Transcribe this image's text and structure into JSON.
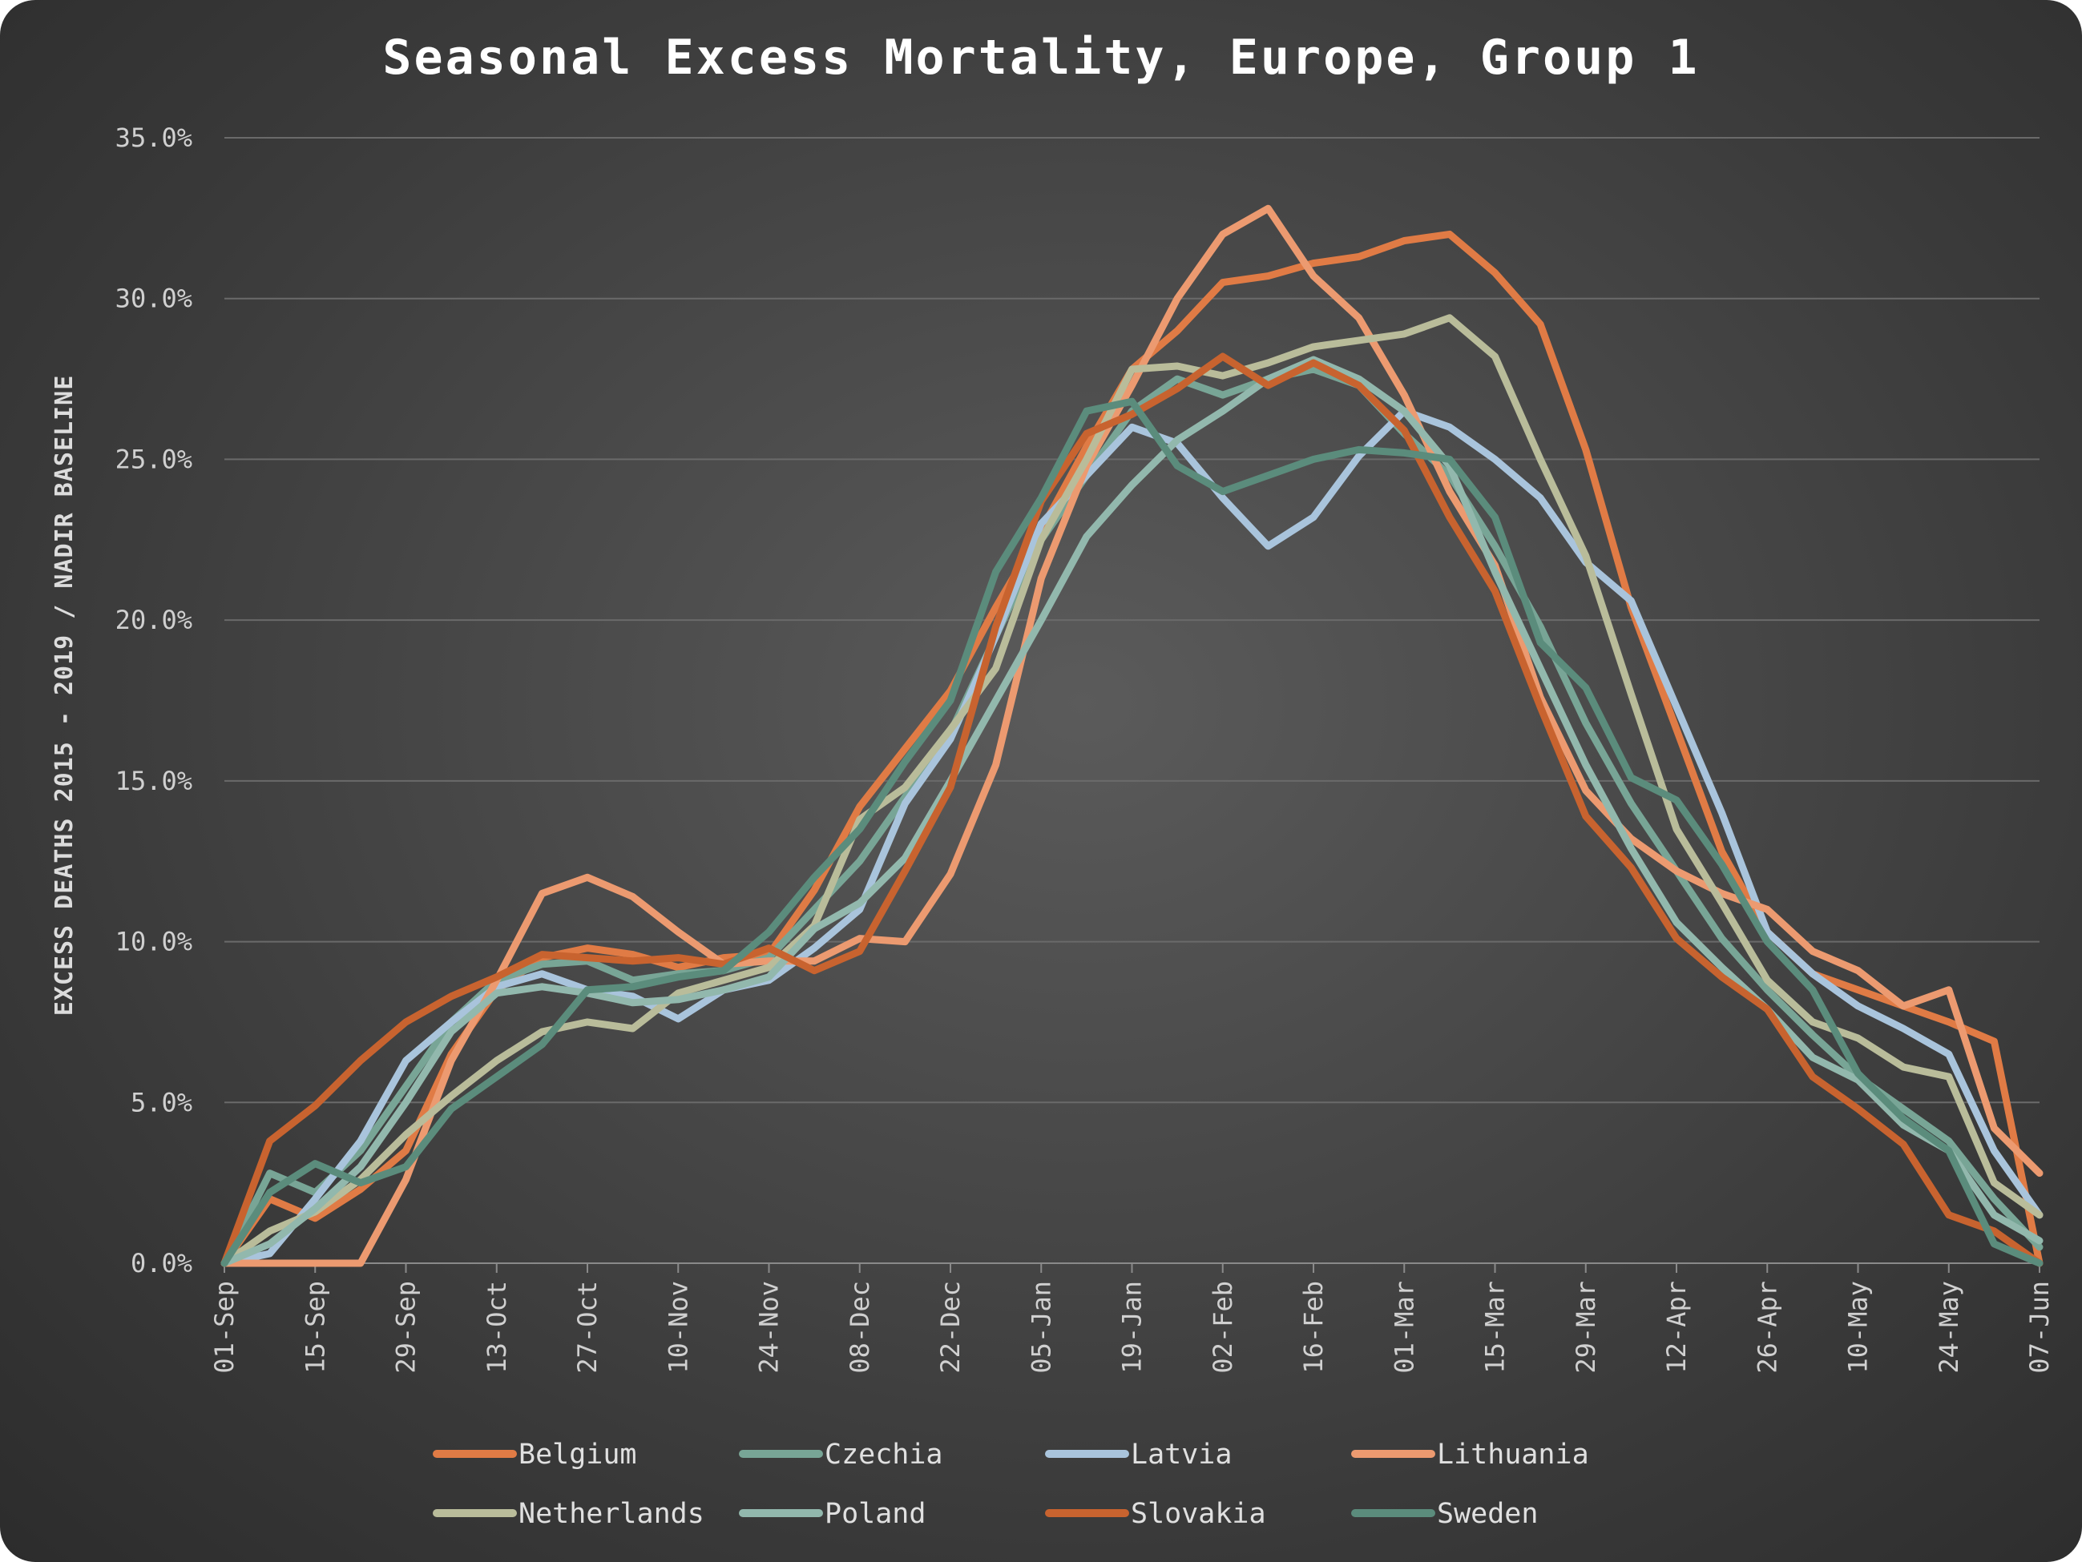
{
  "chart_data": {
    "type": "line",
    "title": "Seasonal Excess Mortality, Europe, Group 1",
    "ylabel": "EXCESS DEATHS 2015 - 2019 / NADIR BASELINE",
    "xlabel": "",
    "ylim": [
      0,
      35
    ],
    "y_ticks": [
      "0.0%",
      "5.0%",
      "10.0%",
      "15.0%",
      "20.0%",
      "25.0%",
      "30.0%",
      "35.0%"
    ],
    "y_tick_values": [
      0,
      5,
      10,
      15,
      20,
      25,
      30,
      35
    ],
    "x_tick_labels": [
      "01-Sep",
      "15-Sep",
      "29-Sep",
      "13-Oct",
      "27-Oct",
      "10-Nov",
      "24-Nov",
      "08-Dec",
      "22-Dec",
      "05-Jan",
      "19-Jan",
      "02-Feb",
      "16-Feb",
      "01-Mar",
      "15-Mar",
      "29-Mar",
      "12-Apr",
      "26-Apr",
      "10-May",
      "24-May",
      "07-Jun"
    ],
    "weeks": 41,
    "grid": "horizontal",
    "legend_position": "bottom",
    "series": [
      {
        "name": "Belgium",
        "color": "#E07B45",
        "values": [
          0,
          2.0,
          1.4,
          2.3,
          3.5,
          6.5,
          8.5,
          9.5,
          9.8,
          9.6,
          9.2,
          9.5,
          9.6,
          11.6,
          14.2,
          16.0,
          17.8,
          20.4,
          22.8,
          25.4,
          27.8,
          29.0,
          30.5,
          30.7,
          31.1,
          31.3,
          31.8,
          32.0,
          30.8,
          29.2,
          25.3,
          20.4,
          16.6,
          12.8,
          10.3,
          9.0,
          8.5,
          8.0,
          7.5,
          6.9,
          0
        ]
      },
      {
        "name": "Czechia",
        "color": "#78A596",
        "values": [
          0,
          2.8,
          2.2,
          3.5,
          5.5,
          7.5,
          8.8,
          9.3,
          9.4,
          8.8,
          9.0,
          9.1,
          9.5,
          11.0,
          12.5,
          14.5,
          16.5,
          19.5,
          22.5,
          24.5,
          26.5,
          27.5,
          27.0,
          27.5,
          27.8,
          27.3,
          25.8,
          24.5,
          22.3,
          19.8,
          16.8,
          14.3,
          12.2,
          10.1,
          8.5,
          7.1,
          5.8,
          4.8,
          3.8,
          2.0,
          0.5
        ]
      },
      {
        "name": "Latvia",
        "color": "#A9C4DC",
        "values": [
          0,
          0.3,
          2.0,
          3.8,
          6.3,
          7.5,
          8.6,
          9.0,
          8.5,
          8.3,
          7.6,
          8.5,
          8.8,
          9.8,
          11.0,
          14.3,
          16.3,
          19.5,
          23.0,
          24.5,
          26.0,
          25.5,
          23.8,
          22.3,
          23.2,
          25.1,
          26.5,
          26.0,
          25.0,
          23.8,
          21.8,
          20.6,
          17.3,
          14.0,
          10.3,
          9.0,
          8.0,
          7.3,
          6.5,
          3.5,
          1.5
        ]
      },
      {
        "name": "Lithuania",
        "color": "#EC9A70",
        "values": [
          0,
          0,
          0,
          0,
          2.6,
          6.3,
          8.8,
          11.5,
          12.0,
          11.4,
          10.3,
          9.3,
          9.4,
          9.4,
          10.1,
          10.0,
          12.1,
          15.5,
          21.3,
          24.8,
          27.3,
          30.0,
          32.0,
          32.8,
          30.7,
          29.4,
          27.0,
          24.0,
          21.7,
          17.6,
          14.7,
          13.2,
          12.2,
          11.5,
          11.0,
          9.7,
          9.1,
          8.0,
          8.5,
          4.2,
          2.8
        ]
      },
      {
        "name": "Netherlands",
        "color": "#B9BC9A",
        "values": [
          0,
          1.0,
          1.6,
          2.6,
          4.0,
          5.2,
          6.3,
          7.2,
          7.5,
          7.3,
          8.4,
          8.8,
          9.2,
          10.5,
          13.8,
          14.8,
          16.6,
          18.5,
          22.5,
          25.0,
          27.8,
          27.9,
          27.6,
          28.0,
          28.5,
          28.7,
          28.9,
          29.4,
          28.2,
          25.0,
          22.0,
          17.7,
          13.5,
          11.2,
          8.8,
          7.5,
          7.0,
          6.1,
          5.8,
          2.5,
          1.5
        ]
      },
      {
        "name": "Poland",
        "color": "#92B8AD",
        "values": [
          0,
          0.6,
          1.7,
          3.0,
          5.0,
          7.2,
          8.4,
          8.6,
          8.4,
          8.1,
          8.2,
          8.5,
          8.9,
          10.4,
          11.2,
          12.6,
          15.0,
          17.5,
          20.0,
          22.6,
          24.2,
          25.6,
          26.5,
          27.5,
          28.1,
          27.5,
          26.5,
          24.8,
          21.5,
          18.5,
          15.5,
          12.9,
          10.6,
          9.2,
          7.9,
          6.4,
          5.7,
          4.3,
          3.5,
          1.5,
          0.7
        ]
      },
      {
        "name": "Slovakia",
        "color": "#C8632F",
        "values": [
          0,
          3.8,
          4.9,
          6.3,
          7.5,
          8.3,
          8.9,
          9.6,
          9.5,
          9.4,
          9.5,
          9.3,
          9.8,
          9.1,
          9.7,
          12.2,
          14.8,
          19.8,
          23.7,
          25.8,
          26.4,
          27.2,
          28.2,
          27.3,
          28.0,
          27.3,
          25.9,
          23.2,
          20.9,
          17.3,
          13.9,
          12.3,
          10.1,
          8.9,
          7.9,
          5.8,
          4.8,
          3.7,
          1.5,
          1.0,
          0
        ]
      },
      {
        "name": "Sweden",
        "color": "#5B8C7C",
        "values": [
          0,
          2.2,
          3.1,
          2.5,
          3.0,
          4.8,
          5.8,
          6.8,
          8.5,
          8.6,
          8.9,
          9.1,
          10.3,
          12.0,
          13.5,
          15.6,
          17.5,
          21.5,
          23.8,
          26.5,
          26.8,
          24.8,
          24.0,
          24.5,
          25.0,
          25.3,
          25.2,
          25.0,
          23.2,
          19.3,
          17.9,
          15.1,
          14.4,
          12.4,
          10.0,
          8.5,
          5.9,
          4.5,
          3.5,
          0.6,
          0
        ]
      }
    ]
  }
}
